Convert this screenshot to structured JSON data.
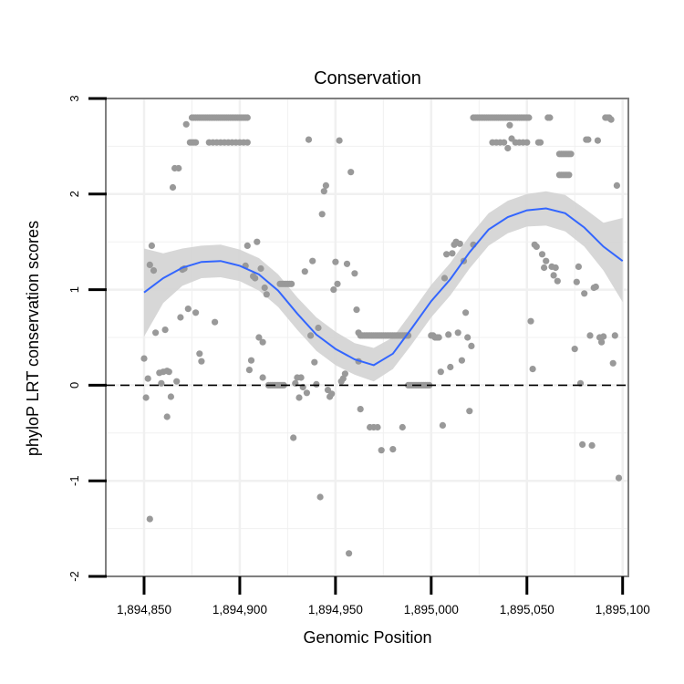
{
  "chart_data": {
    "type": "scatter",
    "title": "Conservation",
    "xlabel": "Genomic Position",
    "ylabel": "phyloP LRT conservation scores",
    "xlim": [
      1894830,
      1895103
    ],
    "ylim": [
      -2,
      3
    ],
    "x_ticks": [
      1894850,
      1894900,
      1894950,
      1895000,
      1895050,
      1895100
    ],
    "x_tick_labels": [
      "1,894,850",
      "1,894,900",
      "1,894,950",
      "1,895,000",
      "1,895,050",
      "1,895,100"
    ],
    "y_ticks": [
      -2,
      -1,
      0,
      1,
      2,
      3
    ],
    "y_tick_labels": [
      "-2",
      "-1",
      "0",
      "1",
      "2",
      "3"
    ],
    "reference_line": {
      "y": 0,
      "style": "dashed"
    },
    "grid": true,
    "colors": {
      "points": "#999999",
      "smooth_line": "#3366ff",
      "ribbon": "#d3d3d3",
      "panel_border": "#7f7f7f",
      "grid": "#f0f0f0"
    },
    "points": [
      [
        1894850,
        0.28
      ],
      [
        1894851,
        -0.13
      ],
      [
        1894852,
        0.07
      ],
      [
        1894853,
        -1.4
      ],
      [
        1894853,
        1.26
      ],
      [
        1894854,
        1.46
      ],
      [
        1894855,
        1.2
      ],
      [
        1894856,
        0.55
      ],
      [
        1894858,
        0.13
      ],
      [
        1894859,
        0.02
      ],
      [
        1894860,
        0.14
      ],
      [
        1894861,
        0.58
      ],
      [
        1894862,
        -0.33
      ],
      [
        1894862,
        0.15
      ],
      [
        1894863,
        0.14
      ],
      [
        1894864,
        -0.12
      ],
      [
        1894865,
        2.07
      ],
      [
        1894866,
        2.27
      ],
      [
        1894867,
        0.04
      ],
      [
        1894868,
        2.27
      ],
      [
        1894869,
        0.71
      ],
      [
        1894870,
        1.21
      ],
      [
        1894871,
        1.22
      ],
      [
        1894872,
        2.73
      ],
      [
        1894873,
        0.8
      ],
      [
        1894874,
        2.54
      ],
      [
        1894875,
        2.54
      ],
      [
        1894876,
        2.54
      ],
      [
        1894877,
        2.54
      ],
      [
        1894875,
        2.8
      ],
      [
        1894876,
        2.8
      ],
      [
        1894877,
        2.8
      ],
      [
        1894878,
        2.8
      ],
      [
        1894879,
        2.8
      ],
      [
        1894880,
        2.8
      ],
      [
        1894881,
        2.8
      ],
      [
        1894882,
        2.8
      ],
      [
        1894883,
        2.8
      ],
      [
        1894884,
        2.8
      ],
      [
        1894885,
        2.8
      ],
      [
        1894886,
        2.8
      ],
      [
        1894887,
        2.8
      ],
      [
        1894888,
        2.8
      ],
      [
        1894889,
        2.8
      ],
      [
        1894890,
        2.8
      ],
      [
        1894891,
        2.8
      ],
      [
        1894892,
        2.8
      ],
      [
        1894893,
        2.8
      ],
      [
        1894894,
        2.8
      ],
      [
        1894895,
        2.8
      ],
      [
        1894896,
        2.8
      ],
      [
        1894897,
        2.8
      ],
      [
        1894898,
        2.8
      ],
      [
        1894899,
        2.8
      ],
      [
        1894900,
        2.8
      ],
      [
        1894901,
        2.8
      ],
      [
        1894902,
        2.8
      ],
      [
        1894903,
        2.8
      ],
      [
        1894904,
        2.8
      ],
      [
        1894884,
        2.54
      ],
      [
        1894886,
        2.54
      ],
      [
        1894888,
        2.54
      ],
      [
        1894890,
        2.54
      ],
      [
        1894892,
        2.54
      ],
      [
        1894894,
        2.54
      ],
      [
        1894896,
        2.54
      ],
      [
        1894898,
        2.54
      ],
      [
        1894900,
        2.54
      ],
      [
        1894902,
        2.54
      ],
      [
        1894904,
        2.54
      ],
      [
        1894877,
        0.76
      ],
      [
        1894879,
        0.33
      ],
      [
        1894880,
        0.25
      ],
      [
        1894887,
        0.66
      ],
      [
        1894903,
        1.25
      ],
      [
        1894904,
        1.46
      ],
      [
        1894905,
        0.16
      ],
      [
        1894906,
        0.26
      ],
      [
        1894907,
        1.14
      ],
      [
        1894908,
        1.12
      ],
      [
        1894909,
        1.5
      ],
      [
        1894910,
        0.5
      ],
      [
        1894911,
        1.22
      ],
      [
        1894912,
        0.45
      ],
      [
        1894912,
        0.08
      ],
      [
        1894913,
        1.02
      ],
      [
        1894914,
        0.95
      ],
      [
        1894915,
        0.0
      ],
      [
        1894916,
        0.0
      ],
      [
        1894917,
        0.0
      ],
      [
        1894918,
        0.0
      ],
      [
        1894919,
        0.0
      ],
      [
        1894920,
        0.0
      ],
      [
        1894921,
        0.0
      ],
      [
        1894922,
        0.0
      ],
      [
        1894923,
        0.0
      ],
      [
        1894921,
        1.06
      ],
      [
        1894922,
        1.06
      ],
      [
        1894923,
        1.06
      ],
      [
        1894924,
        1.06
      ],
      [
        1894925,
        1.06
      ],
      [
        1894926,
        1.06
      ],
      [
        1894927,
        1.06
      ],
      [
        1894928,
        -0.55
      ],
      [
        1894929,
        0.02
      ],
      [
        1894930,
        0.08
      ],
      [
        1894931,
        -0.13
      ],
      [
        1894932,
        0.08
      ],
      [
        1894933,
        -0.02
      ],
      [
        1894934,
        1.19
      ],
      [
        1894935,
        -0.08
      ],
      [
        1894936,
        2.57
      ],
      [
        1894937,
        0.52
      ],
      [
        1894938,
        1.3
      ],
      [
        1894939,
        0.24
      ],
      [
        1894940,
        0.01
      ],
      [
        1894941,
        0.6
      ],
      [
        1894942,
        -1.17
      ],
      [
        1894943,
        1.79
      ],
      [
        1894944,
        2.03
      ],
      [
        1894945,
        2.09
      ],
      [
        1894946,
        -0.05
      ],
      [
        1894947,
        -0.12
      ],
      [
        1894948,
        -0.09
      ],
      [
        1894949,
        1.0
      ],
      [
        1894950,
        1.29
      ],
      [
        1894951,
        1.06
      ],
      [
        1894952,
        2.56
      ],
      [
        1894953,
        0.04
      ],
      [
        1894954,
        0.07
      ],
      [
        1894955,
        0.12
      ],
      [
        1894956,
        1.27
      ],
      [
        1894957,
        -1.76
      ],
      [
        1894958,
        2.23
      ],
      [
        1894960,
        1.17
      ],
      [
        1894961,
        0.79
      ],
      [
        1894962,
        0.55
      ],
      [
        1894962,
        0.25
      ],
      [
        1894963,
        -0.25
      ],
      [
        1894963,
        0.52
      ],
      [
        1894964,
        0.52
      ],
      [
        1894965,
        0.52
      ],
      [
        1894966,
        0.52
      ],
      [
        1894967,
        0.52
      ],
      [
        1894968,
        0.52
      ],
      [
        1894969,
        0.52
      ],
      [
        1894970,
        0.52
      ],
      [
        1894971,
        0.52
      ],
      [
        1894972,
        0.52
      ],
      [
        1894973,
        0.52
      ],
      [
        1894974,
        0.52
      ],
      [
        1894975,
        0.52
      ],
      [
        1894976,
        0.52
      ],
      [
        1894977,
        0.52
      ],
      [
        1894978,
        0.52
      ],
      [
        1894979,
        0.52
      ],
      [
        1894980,
        0.52
      ],
      [
        1894981,
        0.52
      ],
      [
        1894982,
        0.52
      ],
      [
        1894983,
        0.52
      ],
      [
        1894984,
        0.52
      ],
      [
        1894985,
        0.52
      ],
      [
        1894986,
        0.52
      ],
      [
        1894987,
        0.52
      ],
      [
        1894988,
        0.52
      ],
      [
        1894968,
        -0.44
      ],
      [
        1894970,
        -0.44
      ],
      [
        1894972,
        -0.44
      ],
      [
        1894974,
        -0.68
      ],
      [
        1894980,
        -0.67
      ],
      [
        1894985,
        -0.44
      ],
      [
        1894988,
        0.0
      ],
      [
        1894989,
        0.0
      ],
      [
        1894990,
        0.0
      ],
      [
        1894991,
        0.0
      ],
      [
        1894992,
        0.0
      ],
      [
        1894993,
        0.0
      ],
      [
        1894994,
        0.0
      ],
      [
        1894995,
        0.0
      ],
      [
        1894996,
        0.0
      ],
      [
        1894997,
        0.0
      ],
      [
        1894998,
        0.0
      ],
      [
        1894999,
        0.0
      ],
      [
        1895000,
        0.52
      ],
      [
        1895001,
        0.52
      ],
      [
        1895002,
        0.5
      ],
      [
        1895003,
        0.5
      ],
      [
        1895004,
        0.5
      ],
      [
        1895005,
        0.14
      ],
      [
        1895006,
        -0.42
      ],
      [
        1895007,
        1.12
      ],
      [
        1895008,
        1.37
      ],
      [
        1895009,
        0.53
      ],
      [
        1895010,
        0.19
      ],
      [
        1895011,
        1.38
      ],
      [
        1895012,
        1.47
      ],
      [
        1895013,
        1.5
      ],
      [
        1895014,
        0.55
      ],
      [
        1895015,
        1.48
      ],
      [
        1895016,
        0.26
      ],
      [
        1895017,
        1.3
      ],
      [
        1895018,
        0.76
      ],
      [
        1895019,
        0.5
      ],
      [
        1895020,
        -0.27
      ],
      [
        1895021,
        0.41
      ],
      [
        1895022,
        1.47
      ],
      [
        1895022,
        2.8
      ],
      [
        1895023,
        2.8
      ],
      [
        1895024,
        2.8
      ],
      [
        1895025,
        2.8
      ],
      [
        1895026,
        2.8
      ],
      [
        1895027,
        2.8
      ],
      [
        1895028,
        2.8
      ],
      [
        1895029,
        2.8
      ],
      [
        1895030,
        2.8
      ],
      [
        1895031,
        2.8
      ],
      [
        1895032,
        2.8
      ],
      [
        1895033,
        2.8
      ],
      [
        1895034,
        2.8
      ],
      [
        1895035,
        2.8
      ],
      [
        1895036,
        2.8
      ],
      [
        1895037,
        2.8
      ],
      [
        1895038,
        2.8
      ],
      [
        1895039,
        2.8
      ],
      [
        1895040,
        2.8
      ],
      [
        1895041,
        2.8
      ],
      [
        1895042,
        2.8
      ],
      [
        1895043,
        2.8
      ],
      [
        1895044,
        2.8
      ],
      [
        1895045,
        2.8
      ],
      [
        1895046,
        2.8
      ],
      [
        1895047,
        2.8
      ],
      [
        1895048,
        2.8
      ],
      [
        1895049,
        2.8
      ],
      [
        1895050,
        2.8
      ],
      [
        1895051,
        2.8
      ],
      [
        1895032,
        2.54
      ],
      [
        1895034,
        2.54
      ],
      [
        1895036,
        2.54
      ],
      [
        1895038,
        2.54
      ],
      [
        1895040,
        2.48
      ],
      [
        1895041,
        2.72
      ],
      [
        1895042,
        2.58
      ],
      [
        1895044,
        2.54
      ],
      [
        1895046,
        2.54
      ],
      [
        1895048,
        2.54
      ],
      [
        1895050,
        2.54
      ],
      [
        1895052,
        0.67
      ],
      [
        1895053,
        0.17
      ],
      [
        1895054,
        1.47
      ],
      [
        1895055,
        1.45
      ],
      [
        1895056,
        2.54
      ],
      [
        1895057,
        2.54
      ],
      [
        1895058,
        1.37
      ],
      [
        1895059,
        1.23
      ],
      [
        1895060,
        1.3
      ],
      [
        1895061,
        2.8
      ],
      [
        1895062,
        2.8
      ],
      [
        1895063,
        1.24
      ],
      [
        1895064,
        1.15
      ],
      [
        1895065,
        1.23
      ],
      [
        1895066,
        1.09
      ],
      [
        1895067,
        2.42
      ],
      [
        1895068,
        2.42
      ],
      [
        1895069,
        2.42
      ],
      [
        1895070,
        2.42
      ],
      [
        1895071,
        2.42
      ],
      [
        1895072,
        2.42
      ],
      [
        1895073,
        2.42
      ],
      [
        1895067,
        2.2
      ],
      [
        1895068,
        2.2
      ],
      [
        1895069,
        2.2
      ],
      [
        1895070,
        2.2
      ],
      [
        1895071,
        2.2
      ],
      [
        1895072,
        2.2
      ],
      [
        1895075,
        0.38
      ],
      [
        1895076,
        1.08
      ],
      [
        1895077,
        1.24
      ],
      [
        1895078,
        0.02
      ],
      [
        1895079,
        -0.62
      ],
      [
        1895080,
        0.96
      ],
      [
        1895081,
        2.57
      ],
      [
        1895082,
        2.57
      ],
      [
        1895083,
        0.52
      ],
      [
        1895084,
        -0.63
      ],
      [
        1895085,
        1.02
      ],
      [
        1895086,
        1.03
      ],
      [
        1895087,
        2.56
      ],
      [
        1895088,
        0.5
      ],
      [
        1895089,
        0.45
      ],
      [
        1895090,
        0.51
      ],
      [
        1895091,
        2.8
      ],
      [
        1895092,
        2.8
      ],
      [
        1895093,
        2.8
      ],
      [
        1895094,
        2.78
      ],
      [
        1895095,
        0.23
      ],
      [
        1895096,
        0.52
      ],
      [
        1895097,
        2.09
      ],
      [
        1895098,
        -0.97
      ]
    ],
    "smooth_curve": [
      [
        1894850,
        0.97
      ],
      [
        1894860,
        1.12
      ],
      [
        1894870,
        1.23
      ],
      [
        1894880,
        1.29
      ],
      [
        1894890,
        1.3
      ],
      [
        1894900,
        1.25
      ],
      [
        1894910,
        1.16
      ],
      [
        1894920,
        0.99
      ],
      [
        1894930,
        0.75
      ],
      [
        1894940,
        0.53
      ],
      [
        1894950,
        0.38
      ],
      [
        1894960,
        0.27
      ],
      [
        1894970,
        0.21
      ],
      [
        1894980,
        0.33
      ],
      [
        1894990,
        0.6
      ],
      [
        1895000,
        0.88
      ],
      [
        1895010,
        1.11
      ],
      [
        1895020,
        1.39
      ],
      [
        1895030,
        1.63
      ],
      [
        1895040,
        1.76
      ],
      [
        1895050,
        1.83
      ],
      [
        1895060,
        1.85
      ],
      [
        1895070,
        1.8
      ],
      [
        1895080,
        1.65
      ],
      [
        1895090,
        1.45
      ],
      [
        1895100,
        1.3
      ]
    ],
    "ribbon": [
      [
        1894850,
        0.51,
        1.43
      ],
      [
        1894860,
        0.86,
        1.38
      ],
      [
        1894870,
        1.04,
        1.43
      ],
      [
        1894880,
        1.12,
        1.46
      ],
      [
        1894890,
        1.13,
        1.47
      ],
      [
        1894900,
        1.09,
        1.42
      ],
      [
        1894910,
        0.99,
        1.33
      ],
      [
        1894920,
        0.82,
        1.16
      ],
      [
        1894930,
        0.58,
        0.92
      ],
      [
        1894940,
        0.36,
        0.71
      ],
      [
        1894950,
        0.21,
        0.56
      ],
      [
        1894960,
        0.11,
        0.44
      ],
      [
        1894970,
        0.04,
        0.39
      ],
      [
        1894980,
        0.17,
        0.5
      ],
      [
        1894990,
        0.43,
        0.77
      ],
      [
        1895000,
        0.71,
        1.05
      ],
      [
        1895010,
        0.94,
        1.28
      ],
      [
        1895020,
        1.22,
        1.56
      ],
      [
        1895030,
        1.46,
        1.8
      ],
      [
        1895040,
        1.59,
        1.93
      ],
      [
        1895050,
        1.66,
        2.0
      ],
      [
        1895060,
        1.67,
        2.03
      ],
      [
        1895070,
        1.61,
        1.99
      ],
      [
        1895080,
        1.45,
        1.85
      ],
      [
        1895090,
        1.2,
        1.7
      ],
      [
        1895100,
        0.87,
        1.75
      ]
    ]
  }
}
